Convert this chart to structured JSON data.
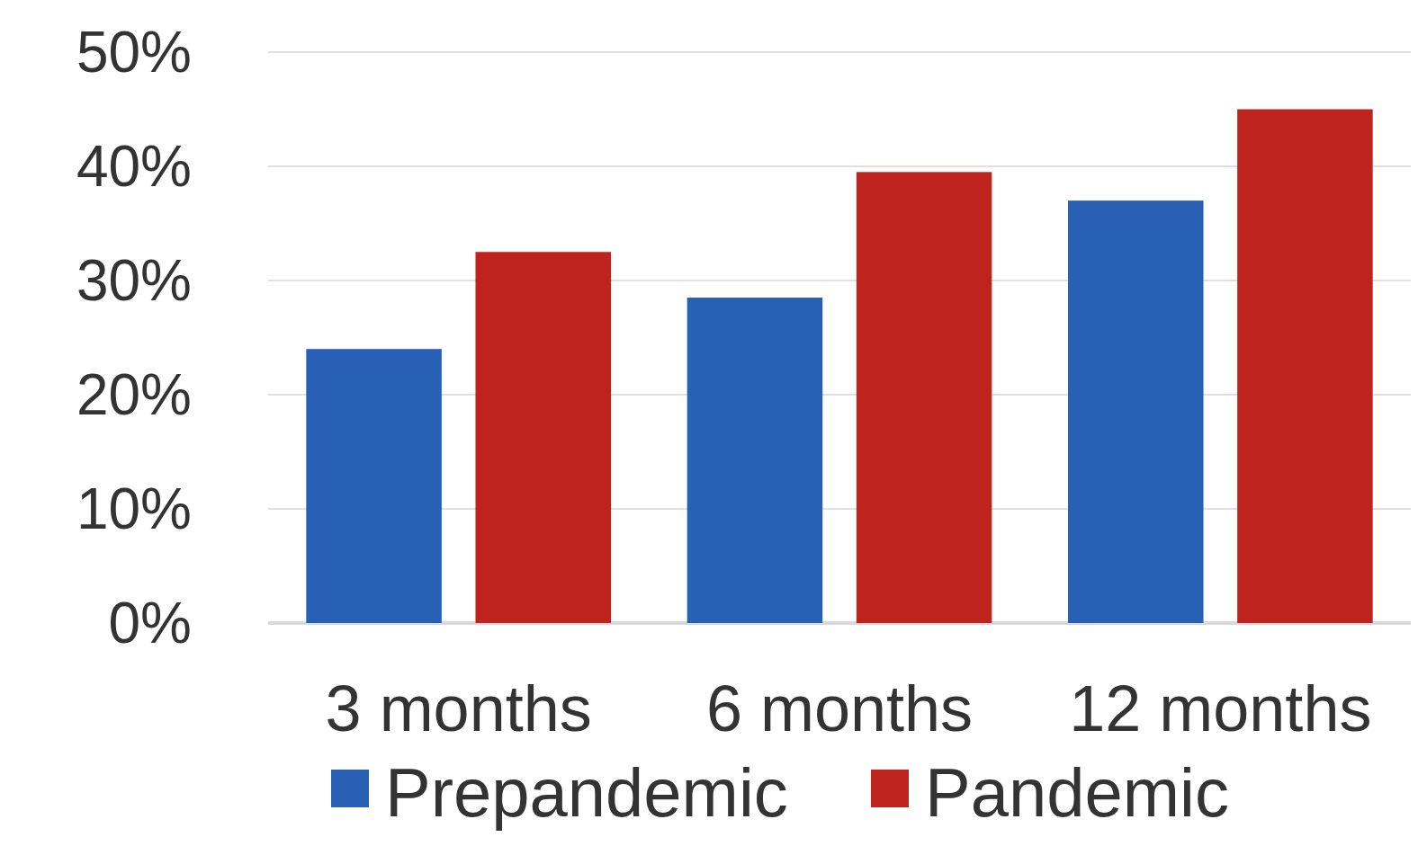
{
  "chart_data": {
    "type": "bar",
    "categories": [
      "3 months",
      "6 months",
      "12 months"
    ],
    "series": [
      {
        "name": "Prepandemic",
        "color": "#2860b5",
        "values": [
          24,
          28.5,
          37
        ]
      },
      {
        "name": "Pandemic",
        "color": "#be241d",
        "values": [
          32.5,
          39.5,
          45
        ]
      }
    ],
    "ylim": [
      0,
      50
    ],
    "yticks": [
      {
        "value": 0,
        "label": "0%"
      },
      {
        "value": 10,
        "label": "10%"
      },
      {
        "value": 20,
        "label": "20%"
      },
      {
        "value": 30,
        "label": "30%"
      },
      {
        "value": 40,
        "label": "40%"
      },
      {
        "value": 50,
        "label": "50%"
      }
    ],
    "grid": "y",
    "legend": "bottom"
  }
}
